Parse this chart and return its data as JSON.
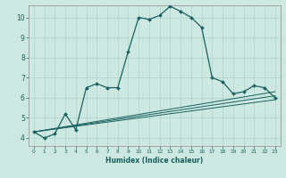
{
  "xlabel": "Humidex (Indice chaleur)",
  "bg_color": "#cce8e0",
  "grid_color": "#aad4cc",
  "line_color": "#1a6060",
  "xlim": [
    -0.5,
    23.5
  ],
  "ylim": [
    3.6,
    10.6
  ],
  "xticks": [
    0,
    1,
    2,
    3,
    4,
    5,
    6,
    7,
    8,
    9,
    10,
    11,
    12,
    13,
    14,
    15,
    16,
    17,
    18,
    19,
    20,
    21,
    22,
    23
  ],
  "yticks": [
    4,
    5,
    6,
    7,
    8,
    9,
    10
  ],
  "line1_x": [
    0,
    1,
    2,
    3,
    4,
    5,
    6,
    7,
    8,
    9,
    10,
    11,
    12,
    13,
    14,
    15,
    16,
    17,
    18,
    19,
    20,
    21,
    22,
    23
  ],
  "line1_y": [
    4.3,
    4.0,
    4.2,
    5.2,
    4.4,
    6.5,
    6.7,
    6.5,
    6.5,
    8.3,
    10.0,
    9.9,
    10.1,
    10.55,
    10.3,
    10.0,
    9.5,
    7.0,
    6.8,
    6.2,
    6.3,
    6.6,
    6.5,
    6.0
  ],
  "line2_x": [
    0,
    23
  ],
  "line2_y": [
    4.3,
    5.9
  ],
  "line3_x": [
    0,
    23
  ],
  "line3_y": [
    4.3,
    6.1
  ],
  "line4_x": [
    0,
    23
  ],
  "line4_y": [
    4.3,
    6.3
  ],
  "xlabel_fontsize": 5.5,
  "tick_fontsize_x": 4.2,
  "tick_fontsize_y": 5.5
}
